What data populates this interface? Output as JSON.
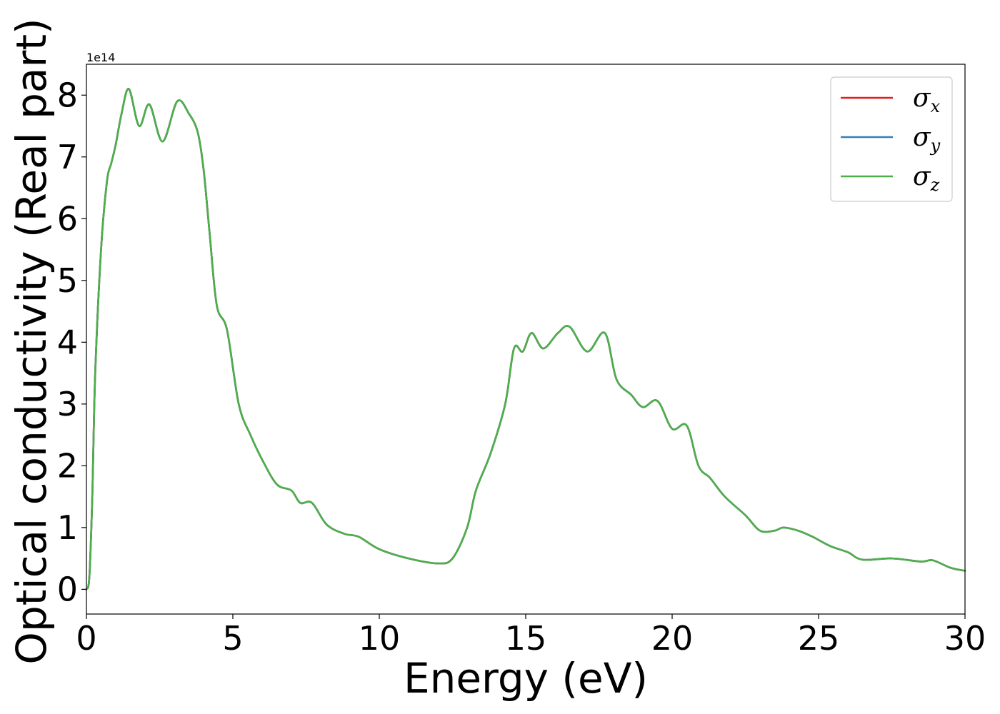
{
  "chart_data": {
    "type": "line",
    "xlabel": "Energy (eV)",
    "ylabel": "Optical conductivity (Real part)",
    "offset_text": "1e14",
    "xlim": [
      0,
      30
    ],
    "ylim": [
      -0.4,
      8.5
    ],
    "xticks": [
      0,
      5,
      10,
      15,
      20,
      25,
      30
    ],
    "yticks": [
      0,
      1,
      2,
      3,
      4,
      5,
      6,
      7,
      8
    ],
    "legend_position": "top-right",
    "grid": false,
    "x": [
      0,
      0.1,
      0.2,
      0.3,
      0.5,
      0.7,
      0.85,
      1.0,
      1.2,
      1.45,
      1.8,
      2.15,
      2.6,
      3.1,
      3.5,
      3.8,
      4.0,
      4.2,
      4.45,
      4.8,
      5.2,
      5.6,
      6.0,
      6.5,
      7.0,
      7.3,
      7.7,
      8.2,
      8.8,
      9.3,
      10.0,
      11.0,
      12.0,
      12.5,
      13.0,
      13.3,
      13.8,
      14.3,
      14.6,
      14.9,
      15.2,
      15.6,
      16.1,
      16.5,
      17.1,
      17.7,
      18.1,
      18.6,
      19.0,
      19.5,
      20.0,
      20.5,
      20.9,
      21.3,
      21.8,
      22.5,
      23.0,
      23.5,
      23.8,
      24.3,
      24.8,
      25.4,
      26.0,
      26.5,
      27.5,
      28.5,
      28.9,
      29.5,
      30.0
    ],
    "series": [
      {
        "name": "σx",
        "color": "#e41a1c",
        "values": [
          0,
          0.2,
          1.5,
          3.5,
          5.5,
          6.6,
          6.9,
          7.2,
          7.7,
          8.1,
          7.5,
          7.85,
          7.25,
          7.9,
          7.7,
          7.4,
          6.8,
          5.8,
          4.6,
          4.2,
          3.0,
          2.5,
          2.1,
          1.7,
          1.6,
          1.4,
          1.4,
          1.05,
          0.9,
          0.85,
          0.65,
          0.5,
          0.42,
          0.5,
          1.0,
          1.6,
          2.2,
          3.0,
          3.9,
          3.85,
          4.15,
          3.9,
          4.15,
          4.25,
          3.85,
          4.15,
          3.4,
          3.15,
          2.95,
          3.05,
          2.6,
          2.65,
          2.0,
          1.8,
          1.5,
          1.2,
          0.95,
          0.95,
          1.0,
          0.95,
          0.85,
          0.7,
          0.6,
          0.48,
          0.5,
          0.45,
          0.47,
          0.35,
          0.3
        ]
      },
      {
        "name": "σy",
        "color": "#377eb8",
        "values": [
          0,
          0.2,
          1.5,
          3.5,
          5.5,
          6.6,
          6.9,
          7.2,
          7.7,
          8.1,
          7.5,
          7.85,
          7.25,
          7.9,
          7.7,
          7.4,
          6.8,
          5.8,
          4.6,
          4.2,
          3.0,
          2.5,
          2.1,
          1.7,
          1.6,
          1.4,
          1.4,
          1.05,
          0.9,
          0.85,
          0.65,
          0.5,
          0.42,
          0.5,
          1.0,
          1.6,
          2.2,
          3.0,
          3.9,
          3.85,
          4.15,
          3.9,
          4.15,
          4.25,
          3.85,
          4.15,
          3.4,
          3.15,
          2.95,
          3.05,
          2.6,
          2.65,
          2.0,
          1.8,
          1.5,
          1.2,
          0.95,
          0.95,
          1.0,
          0.95,
          0.85,
          0.7,
          0.6,
          0.48,
          0.5,
          0.45,
          0.47,
          0.35,
          0.3
        ]
      },
      {
        "name": "σz",
        "color": "#4daf4a",
        "values": [
          0,
          0.2,
          1.5,
          3.5,
          5.5,
          6.6,
          6.9,
          7.2,
          7.7,
          8.1,
          7.5,
          7.85,
          7.25,
          7.9,
          7.7,
          7.4,
          6.8,
          5.8,
          4.6,
          4.2,
          3.0,
          2.5,
          2.1,
          1.7,
          1.6,
          1.4,
          1.4,
          1.05,
          0.9,
          0.85,
          0.65,
          0.5,
          0.42,
          0.5,
          1.0,
          1.6,
          2.2,
          3.0,
          3.9,
          3.85,
          4.15,
          3.9,
          4.15,
          4.25,
          3.85,
          4.15,
          3.4,
          3.15,
          2.95,
          3.05,
          2.6,
          2.65,
          2.0,
          1.8,
          1.5,
          1.2,
          0.95,
          0.95,
          1.0,
          0.95,
          0.85,
          0.7,
          0.6,
          0.48,
          0.5,
          0.45,
          0.47,
          0.35,
          0.3
        ]
      }
    ]
  }
}
